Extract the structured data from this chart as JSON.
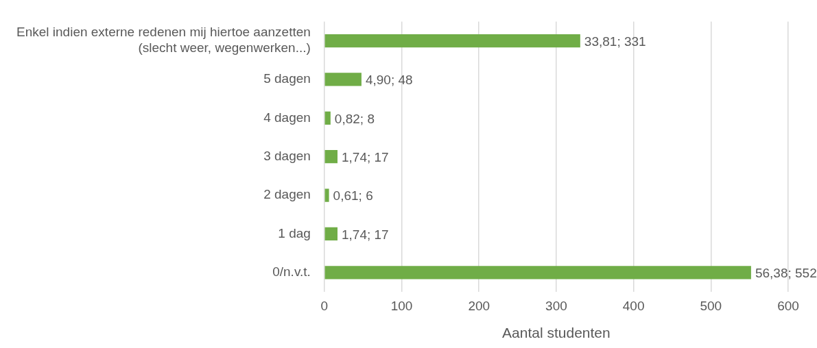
{
  "chart_data": {
    "type": "bar",
    "orientation": "horizontal",
    "categories": [
      "Enkel indien externe redenen mij hiertoe aanzetten\n(slecht weer, wegenwerken...)",
      "5 dagen",
      "4 dagen",
      "3 dagen",
      "2 dagen",
      "1 dag",
      "0/n.v.t."
    ],
    "values": [
      331,
      48,
      8,
      17,
      6,
      17,
      552
    ],
    "value_labels": [
      "33,81; 331",
      "4,90; 48",
      "0,82; 8",
      "1,74; 17",
      "0,61; 6",
      "1,74; 17",
      "56,38; 552"
    ],
    "color": "#70ad47",
    "xlabel": "Aantal studenten",
    "xlim": [
      0,
      600
    ],
    "xticks": [
      0,
      100,
      200,
      300,
      400,
      500,
      600
    ],
    "grid": "x",
    "legend": false
  }
}
